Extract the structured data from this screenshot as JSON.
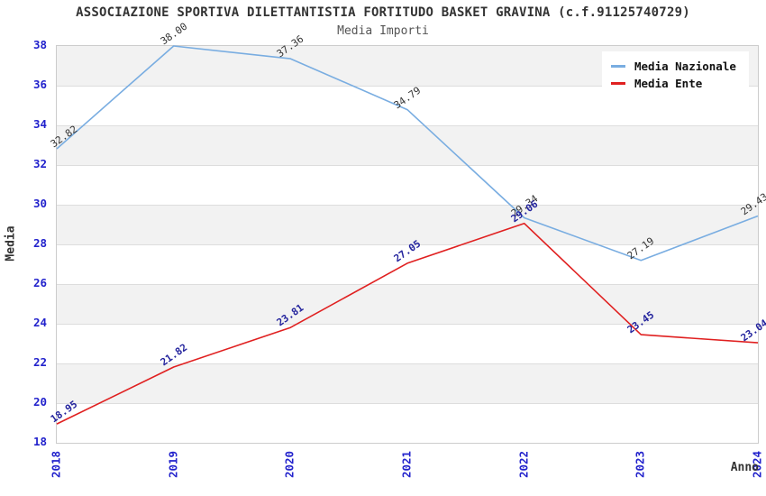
{
  "header": {
    "title": "ASSOCIAZIONE SPORTIVA DILETTANTISTIA FORTITUDO BASKET GRAVINA (c.f.91125740729)",
    "subtitle": "Media Importi"
  },
  "chart_data": {
    "type": "line",
    "title": "ASSOCIAZIONE SPORTIVA DILETTANTISTIA FORTITUDO BASKET GRAVINA (c.f.91125740729)",
    "subtitle": "Media Importi",
    "xlabel": "Anno",
    "ylabel": "Media",
    "ylim": [
      18,
      38
    ],
    "ytick_step": 2,
    "grid": "horizontal-bands",
    "legend_position": "top-right",
    "band_colors": [
      "#f2f2f2",
      "#ffffff"
    ],
    "gridline_color": "#dddddd",
    "axis_tick_color": "#2222cc",
    "categories": [
      "2018",
      "2019",
      "2020",
      "2021",
      "2022",
      "2023",
      "2024"
    ],
    "series": [
      {
        "name": "Media Nazionale",
        "color": "#79ade1",
        "label_color": "#333333",
        "label_weight": "normal",
        "values": [
          32.82,
          38.0,
          37.36,
          34.79,
          29.34,
          27.19,
          29.43
        ]
      },
      {
        "name": "Media Ente",
        "color": "#e02020",
        "label_color": "#23239d",
        "label_weight": "bold",
        "values": [
          18.95,
          21.82,
          23.81,
          27.05,
          29.06,
          23.45,
          23.04
        ]
      }
    ]
  }
}
